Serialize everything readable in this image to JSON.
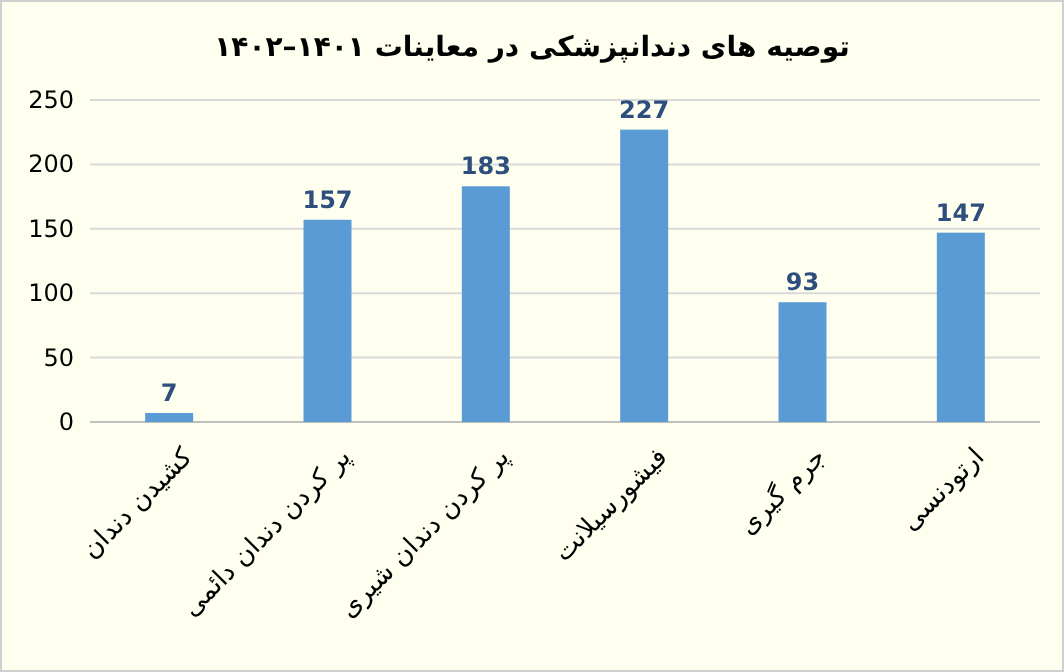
{
  "chart_data": {
    "type": "bar",
    "title": "توصیه های دندانپزشکی در معاینات ۱۴۰۱–۱۴۰۲",
    "categories": [
      "کشیدن دندان",
      "پر کردن دندان دائمی",
      "پر کردن دندان شیری",
      "فیشورسیلانت",
      "جرم گیری",
      "ارتودنسی"
    ],
    "values": [
      7,
      157,
      183,
      227,
      93,
      147
    ],
    "color": "#5b9bd5",
    "ylim": [
      0,
      250
    ],
    "yticks": [
      0,
      50,
      100,
      150,
      200,
      250
    ],
    "grid": "y",
    "data_labels": true
  }
}
